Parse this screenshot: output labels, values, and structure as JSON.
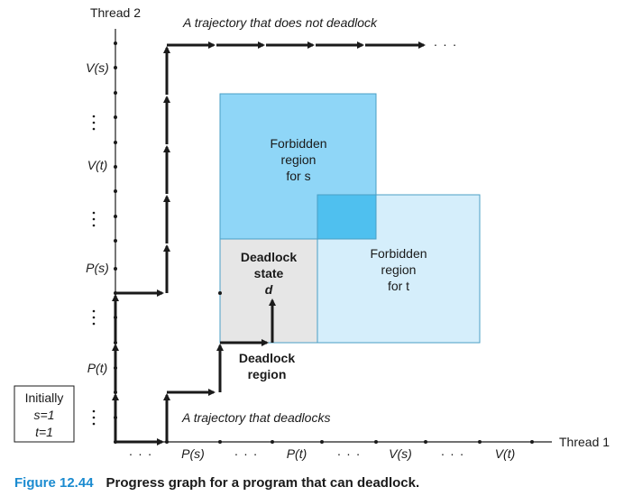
{
  "axes": {
    "y_title": "Thread 2",
    "x_title": "Thread 1",
    "y_labels": [
      "V(s)",
      "V(t)",
      "P(s)",
      "P(t)"
    ],
    "x_labels": [
      "P(s)",
      "P(t)",
      "V(s)",
      "V(t)"
    ],
    "ellipsis": "· · ·",
    "trailing_ellipsis": "· · ·"
  },
  "regions": {
    "forbidden_s": [
      "Forbidden",
      "region",
      "for s"
    ],
    "forbidden_t": [
      "Forbidden",
      "region",
      "for t"
    ],
    "deadlock_state": [
      "Deadlock",
      "state",
      "d"
    ],
    "deadlock_region": [
      "Deadlock",
      "region"
    ]
  },
  "trajectories": {
    "no_deadlock": "A trajectory that does not deadlock",
    "deadlock": "A trajectory that deadlocks"
  },
  "initial_state": [
    "Initially",
    "s=1",
    "t=1"
  ],
  "caption": {
    "figure": "Figure 12.44",
    "text": "Progress graph for a program that can deadlock."
  },
  "colors": {
    "forbidden_s": "#8fd6f7",
    "forbidden_t": "#d5eefb",
    "overlap": "#4fc0ef",
    "deadlock_state": "#e6e6e6",
    "caption_accent": "#1b8bd0"
  }
}
